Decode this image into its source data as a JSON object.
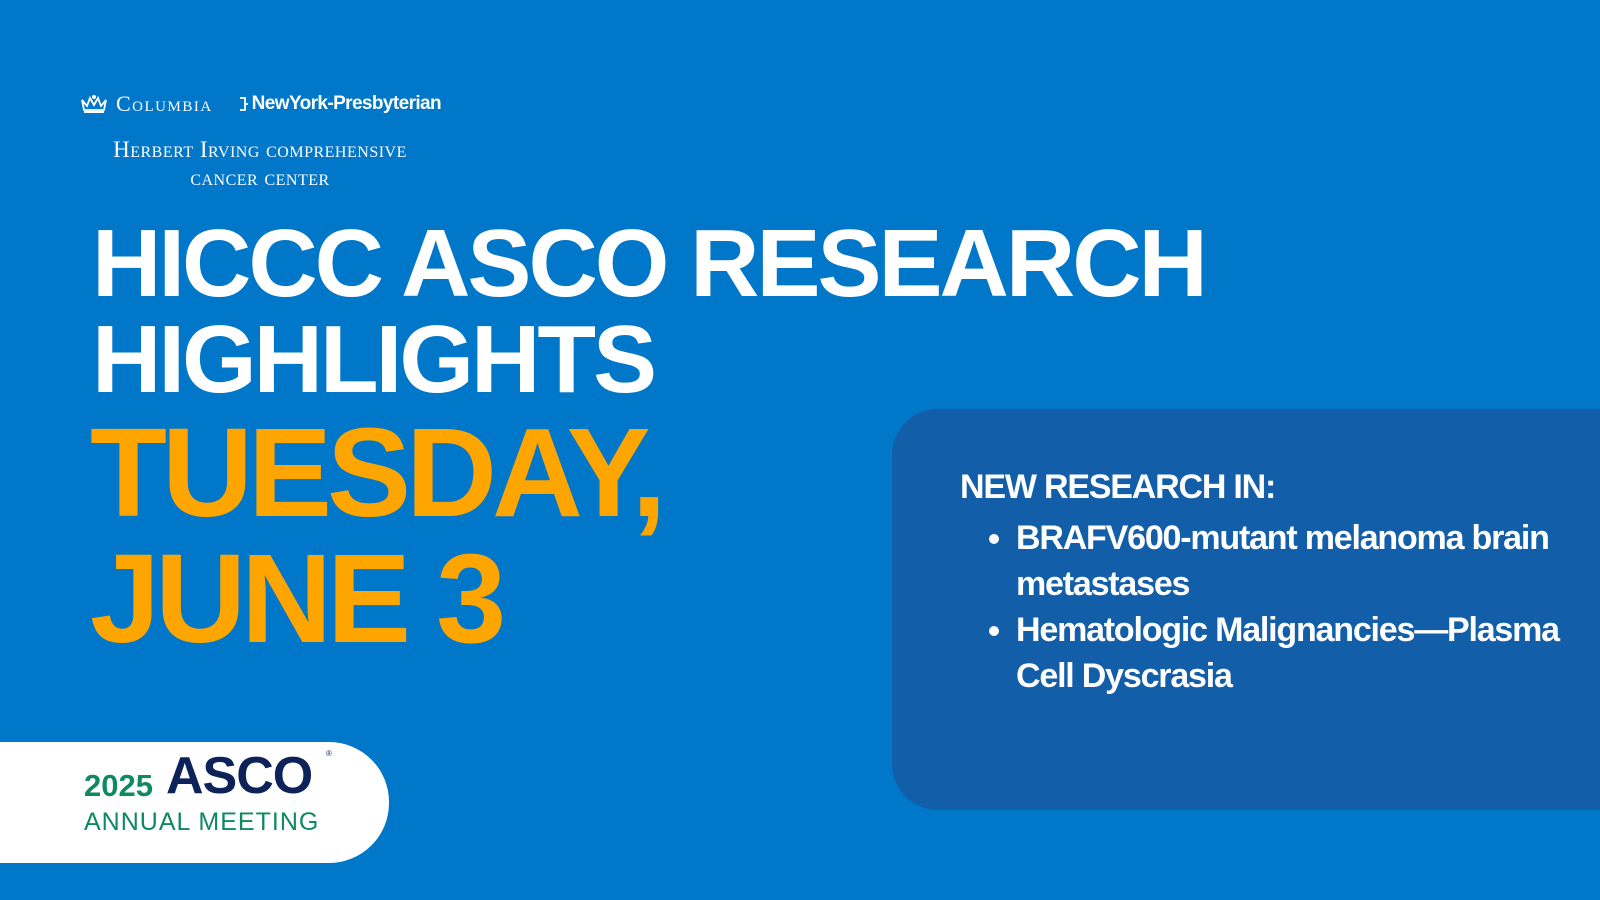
{
  "colors": {
    "background": "#0077c8",
    "panel": "#125ea8",
    "date": "#ffa500",
    "asco_green": "#0f8a5f",
    "asco_navy": "#0d2258"
  },
  "header": {
    "columbia": "Columbia",
    "nyp": "NewYork-Presbyterian",
    "center_line1": "Herbert Irving comprehensive",
    "center_line2": "cancer center",
    "icons": [
      "crown-icon",
      "nyp-mark-icon"
    ]
  },
  "title": {
    "line1": "HICCC ASCO RESEARCH",
    "line2": "HIGHLIGHTS"
  },
  "date": {
    "line1": "TUESDAY,",
    "line2": "JUNE 3"
  },
  "panel": {
    "heading": "NEW RESEARCH IN:",
    "items": [
      "BRAFV600-mutant melanoma brain metastases",
      "Hematologic Malignancies—Plasma Cell Dyscrasia"
    ]
  },
  "asco": {
    "year": "2025",
    "name": "ASCO",
    "reg": "®",
    "subtitle": "ANNUAL MEETING"
  }
}
